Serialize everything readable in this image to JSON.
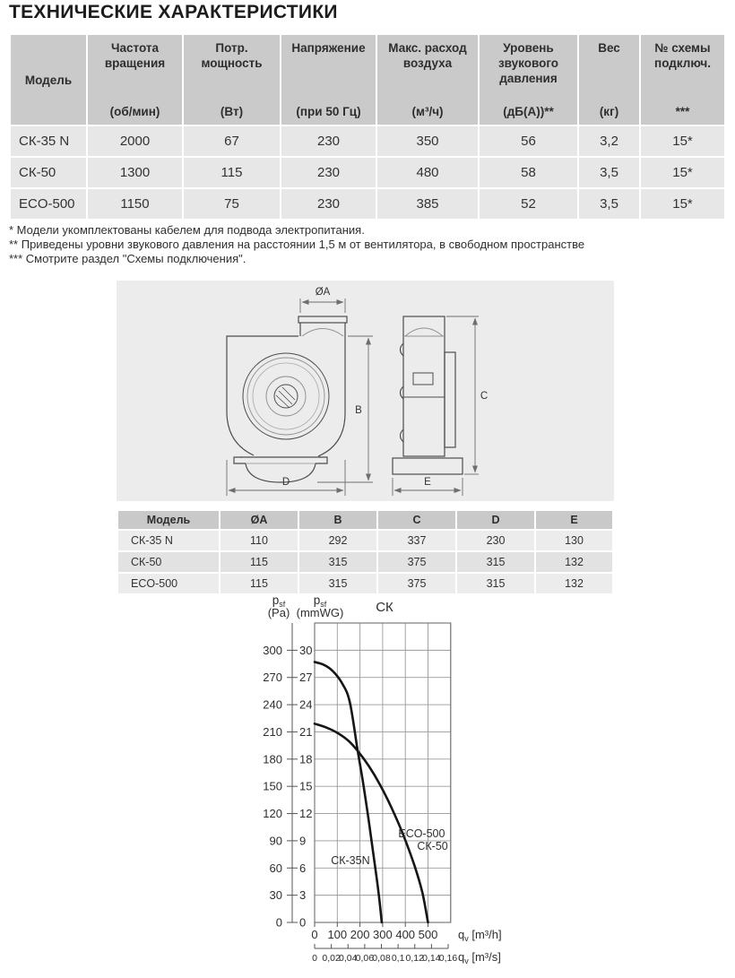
{
  "page": {
    "title": "ТЕХНИЧЕСКИЕ ХАРАКТЕРИСТИКИ"
  },
  "spec_table": {
    "columns": [
      {
        "name": "Модель",
        "unit": ""
      },
      {
        "name": "Частота вращения",
        "unit": "(об/мин)"
      },
      {
        "name": "Потр. мощность",
        "unit": "(Вт)"
      },
      {
        "name": "Напряжение",
        "unit": "(при 50 Гц)"
      },
      {
        "name": "Макс. расход воздуха",
        "unit": "(м³/ч)"
      },
      {
        "name": "Уровень звукового давления",
        "unit": "(дБ(А))**"
      },
      {
        "name": "Вес",
        "unit": "(кг)"
      },
      {
        "name": "№ схемы подключ.",
        "unit": "***"
      }
    ],
    "rows": [
      [
        "СК-35 N",
        "2000",
        "67",
        "230",
        "350",
        "56",
        "3,2",
        "15*"
      ],
      [
        "СК-50",
        "1300",
        "115",
        "230",
        "480",
        "58",
        "3,5",
        "15*"
      ],
      [
        "ECO-500",
        "1150",
        "75",
        "230",
        "385",
        "52",
        "3,5",
        "15*"
      ]
    ]
  },
  "footnotes": [
    "* Модели укомплектованы кабелем для подвода электропитания.",
    "** Приведены уровни звукового давления на расстоянии 1,5 м от вентилятора, в свободном пространстве",
    "*** Смотрите раздел \"Схемы подключения\"."
  ],
  "drawing": {
    "dims": {
      "a": "ØA",
      "b": "B",
      "c": "C",
      "d": "D",
      "e": "E"
    }
  },
  "dim_table": {
    "columns": [
      "Модель",
      "ØA",
      "B",
      "C",
      "D",
      "E"
    ],
    "rows": [
      [
        "СК-35 N",
        "110",
        "292",
        "337",
        "230",
        "130"
      ],
      [
        "СК-50",
        "115",
        "315",
        "375",
        "315",
        "132"
      ],
      [
        "ECO-500",
        "115",
        "315",
        "375",
        "315",
        "132"
      ]
    ]
  },
  "chart_data": {
    "type": "line",
    "title": "СК",
    "x_ticks_primary": [
      0,
      100,
      200,
      300,
      400,
      500
    ],
    "x_max": 600,
    "x_ticks_secondary": [
      "0",
      "0,02",
      "0,04",
      "0,06",
      "0,08",
      "0,1",
      "0,12",
      "0,14",
      "0,16"
    ],
    "y_ticks_pa": [
      0,
      30,
      60,
      90,
      120,
      150,
      180,
      210,
      240,
      270,
      300
    ],
    "y_max_pa": 330,
    "y_ticks_mmwg": [
      0,
      3,
      6,
      9,
      12,
      15,
      18,
      21,
      24,
      27,
      30
    ],
    "y_label": {
      "sym": "p",
      "sub": "sf",
      "unit_pa": "(Pa)",
      "unit_mmwg": "(mmWG)"
    },
    "x_label": {
      "sym": "q",
      "sub": "v",
      "unit_h": "[m³/h]",
      "unit_s": "[m³/s]"
    },
    "series": [
      {
        "name": "СК-35N",
        "points": [
          [
            0,
            287
          ],
          [
            40,
            284
          ],
          [
            80,
            277
          ],
          [
            120,
            264
          ],
          [
            155,
            243
          ],
          [
            190,
            189
          ],
          [
            215,
            152
          ],
          [
            240,
            110
          ],
          [
            262,
            70
          ],
          [
            282,
            33
          ],
          [
            296,
            0
          ]
        ]
      },
      {
        "name": "ECO-500 / СК-50",
        "points": [
          [
            0,
            219
          ],
          [
            50,
            215
          ],
          [
            100,
            209
          ],
          [
            150,
            200
          ],
          [
            190,
            189
          ],
          [
            240,
            172
          ],
          [
            290,
            151
          ],
          [
            340,
            126
          ],
          [
            390,
            97
          ],
          [
            440,
            63
          ],
          [
            475,
            33
          ],
          [
            500,
            0
          ]
        ]
      }
    ],
    "curve_labels": [
      {
        "text": "СК-35N",
        "x": 72,
        "y": 68,
        "anchor": "start"
      },
      {
        "text": "ECO-500",
        "x": 575,
        "y": 98,
        "anchor": "end"
      },
      {
        "text": "СК-50",
        "x": 588,
        "y": 84,
        "anchor": "end"
      }
    ],
    "grid": true,
    "legend_position": "inline"
  }
}
